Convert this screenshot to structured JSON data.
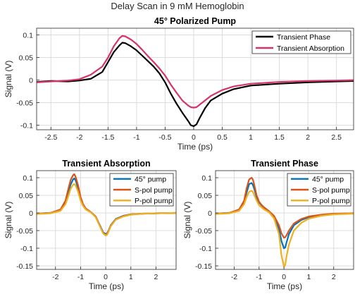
{
  "figure": {
    "suptitle": "Delay Scan in 9 mM Hemoglobin"
  },
  "chart_data": [
    {
      "type": "line",
      "title": "45° Polarized Pump",
      "xlabel": "Time (ps)",
      "ylabel": "Signal (V)",
      "xlim": [
        -2.75,
        2.8
      ],
      "ylim": [
        -0.11,
        0.115
      ],
      "xticks": [
        -2.5,
        -2,
        -1.5,
        -1,
        -0.5,
        0,
        0.5,
        1,
        1.5,
        2,
        2.5
      ],
      "xtick_labels": [
        "-2.5",
        "-2",
        "-1.5",
        "-1",
        "-0.5",
        "0",
        "0.5",
        "1",
        "1.5",
        "2",
        "2.5"
      ],
      "yticks": [
        -0.1,
        -0.05,
        0,
        0.05,
        0.1
      ],
      "ytick_labels": [
        "-0.1",
        "-0.05",
        "0",
        "0.05",
        "0.1"
      ],
      "grid": true,
      "legend_position": "top-right",
      "series": [
        {
          "name": "Transient Phase",
          "color": "#000000",
          "x": [
            -2.75,
            -2.5,
            -2.2,
            -2.0,
            -1.8,
            -1.6,
            -1.5,
            -1.4,
            -1.3,
            -1.25,
            -1.2,
            -1.1,
            -1.0,
            -0.9,
            -0.8,
            -0.7,
            -0.6,
            -0.5,
            -0.4,
            -0.3,
            -0.2,
            -0.1,
            -0.05,
            0.0,
            0.05,
            0.1,
            0.2,
            0.3,
            0.5,
            0.7,
            1.0,
            1.5,
            2.0,
            2.5,
            2.8
          ],
          "y": [
            -0.004,
            -0.002,
            -0.003,
            -0.001,
            0.003,
            0.018,
            0.04,
            0.062,
            0.077,
            0.083,
            0.082,
            0.075,
            0.066,
            0.054,
            0.042,
            0.03,
            0.015,
            -0.005,
            -0.03,
            -0.052,
            -0.072,
            -0.09,
            -0.1,
            -0.102,
            -0.098,
            -0.085,
            -0.062,
            -0.045,
            -0.03,
            -0.02,
            -0.012,
            -0.008,
            -0.005,
            -0.003,
            -0.002
          ]
        },
        {
          "name": "Transient Absorption",
          "color": "#d6336c",
          "x": [
            -2.75,
            -2.5,
            -2.2,
            -2.0,
            -1.8,
            -1.6,
            -1.5,
            -1.4,
            -1.3,
            -1.25,
            -1.2,
            -1.1,
            -1.0,
            -0.9,
            -0.8,
            -0.7,
            -0.6,
            -0.5,
            -0.4,
            -0.3,
            -0.2,
            -0.1,
            -0.05,
            0.0,
            0.05,
            0.1,
            0.2,
            0.3,
            0.5,
            0.7,
            1.0,
            1.5,
            2.0,
            2.5,
            2.8
          ],
          "y": [
            -0.005,
            -0.003,
            -0.001,
            0.002,
            0.012,
            0.03,
            0.05,
            0.075,
            0.093,
            0.098,
            0.097,
            0.09,
            0.08,
            0.067,
            0.053,
            0.04,
            0.026,
            0.01,
            -0.01,
            -0.028,
            -0.045,
            -0.056,
            -0.06,
            -0.061,
            -0.06,
            -0.055,
            -0.045,
            -0.035,
            -0.022,
            -0.014,
            -0.008,
            -0.004,
            -0.002,
            -0.001,
            0.0
          ]
        }
      ]
    },
    {
      "type": "line",
      "title": "Transient Absorption",
      "xlabel": "Time (ps)",
      "ylabel": "Signal (V)",
      "xlim": [
        -2.75,
        2.8
      ],
      "ylim": [
        -0.16,
        0.12
      ],
      "xticks": [
        -2,
        -1,
        0,
        1,
        2
      ],
      "xtick_labels": [
        "-2",
        "-1",
        "0",
        "1",
        "2"
      ],
      "yticks": [
        -0.15,
        -0.1,
        -0.05,
        0,
        0.05,
        0.1
      ],
      "ytick_labels": [
        "-0.15",
        "-0.1",
        "-0.05",
        "0",
        "0.05",
        "0.1"
      ],
      "grid": true,
      "legend_position": "top-right",
      "series": [
        {
          "name": "45° pump",
          "color": "#0072bd",
          "x": [
            -2.75,
            -2.2,
            -1.8,
            -1.6,
            -1.5,
            -1.4,
            -1.3,
            -1.25,
            -1.2,
            -1.1,
            -1.0,
            -0.9,
            -0.8,
            -0.6,
            -0.4,
            -0.2,
            -0.1,
            0.0,
            0.05,
            0.1,
            0.2,
            0.4,
            0.7,
            1.0,
            1.5,
            2.0,
            2.8
          ],
          "y": [
            -0.002,
            0.0,
            0.008,
            0.03,
            0.055,
            0.08,
            0.095,
            0.098,
            0.093,
            0.07,
            0.04,
            0.022,
            0.012,
            0.003,
            -0.01,
            -0.04,
            -0.055,
            -0.06,
            -0.058,
            -0.052,
            -0.035,
            -0.017,
            -0.008,
            -0.004,
            -0.002,
            -0.001,
            0.0
          ]
        },
        {
          "name": "S-pol pump",
          "color": "#d95319",
          "x": [
            -2.75,
            -2.2,
            -1.8,
            -1.6,
            -1.5,
            -1.4,
            -1.3,
            -1.25,
            -1.2,
            -1.1,
            -1.0,
            -0.9,
            -0.8,
            -0.6,
            -0.4,
            -0.2,
            -0.1,
            0.0,
            0.05,
            0.1,
            0.2,
            0.4,
            0.7,
            1.0,
            1.5,
            2.0,
            2.8
          ],
          "y": [
            -0.002,
            0.0,
            0.01,
            0.035,
            0.065,
            0.093,
            0.107,
            0.11,
            0.103,
            0.078,
            0.045,
            0.025,
            0.013,
            0.003,
            -0.01,
            -0.042,
            -0.057,
            -0.062,
            -0.06,
            -0.053,
            -0.036,
            -0.018,
            -0.009,
            -0.004,
            -0.002,
            -0.001,
            0.0
          ]
        },
        {
          "name": "P-pol pump",
          "color": "#edb120",
          "x": [
            -2.75,
            -2.2,
            -1.8,
            -1.6,
            -1.5,
            -1.4,
            -1.3,
            -1.25,
            -1.2,
            -1.1,
            -1.0,
            -0.9,
            -0.8,
            -0.6,
            -0.4,
            -0.2,
            -0.1,
            0.0,
            0.05,
            0.1,
            0.2,
            0.4,
            0.7,
            1.0,
            1.5,
            2.0,
            2.8
          ],
          "y": [
            -0.003,
            -0.001,
            0.006,
            0.025,
            0.045,
            0.068,
            0.08,
            0.082,
            0.078,
            0.06,
            0.035,
            0.02,
            0.01,
            0.002,
            -0.012,
            -0.043,
            -0.058,
            -0.064,
            -0.062,
            -0.055,
            -0.038,
            -0.019,
            -0.01,
            -0.005,
            -0.002,
            -0.001,
            0.0
          ]
        }
      ]
    },
    {
      "type": "line",
      "title": "Transient Phase",
      "xlabel": "Time (ps)",
      "ylabel": "Signal (V)",
      "xlim": [
        -2.75,
        2.8
      ],
      "ylim": [
        -0.16,
        0.12
      ],
      "xticks": [
        -2,
        -1,
        0,
        1,
        2
      ],
      "xtick_labels": [
        "-2",
        "-1",
        "0",
        "1",
        "2"
      ],
      "yticks": [
        -0.15,
        -0.1,
        -0.05,
        0,
        0.05,
        0.1
      ],
      "ytick_labels": [
        "-0.15",
        "-0.1",
        "-0.05",
        "0",
        "0.05",
        "0.1"
      ],
      "grid": true,
      "legend_position": "top-right",
      "series": [
        {
          "name": "45° pump",
          "color": "#0072bd",
          "x": [
            -2.75,
            -2.2,
            -1.8,
            -1.6,
            -1.5,
            -1.4,
            -1.3,
            -1.25,
            -1.2,
            -1.1,
            -1.0,
            -0.9,
            -0.8,
            -0.6,
            -0.4,
            -0.2,
            -0.1,
            0.0,
            0.05,
            0.1,
            0.2,
            0.4,
            0.7,
            1.0,
            1.5,
            2.0,
            2.8
          ],
          "y": [
            -0.002,
            0.0,
            0.008,
            0.03,
            0.058,
            0.082,
            0.085,
            0.08,
            0.07,
            0.045,
            0.03,
            0.022,
            0.015,
            0.005,
            -0.01,
            -0.045,
            -0.08,
            -0.1,
            -0.098,
            -0.085,
            -0.06,
            -0.035,
            -0.02,
            -0.012,
            -0.006,
            -0.003,
            -0.001
          ]
        },
        {
          "name": "S-pol pump",
          "color": "#d95319",
          "x": [
            -2.75,
            -2.2,
            -1.8,
            -1.6,
            -1.5,
            -1.4,
            -1.3,
            -1.25,
            -1.2,
            -1.1,
            -1.0,
            -0.9,
            -0.8,
            -0.6,
            -0.4,
            -0.2,
            -0.1,
            0.0,
            0.05,
            0.1,
            0.2,
            0.4,
            0.7,
            1.0,
            1.5,
            2.0,
            2.8
          ],
          "y": [
            -0.002,
            0.0,
            0.01,
            0.035,
            0.07,
            0.095,
            0.1,
            0.095,
            0.082,
            0.05,
            0.032,
            0.023,
            0.016,
            0.005,
            -0.008,
            -0.035,
            -0.058,
            -0.07,
            -0.069,
            -0.064,
            -0.05,
            -0.03,
            -0.017,
            -0.01,
            -0.005,
            -0.002,
            -0.001
          ]
        },
        {
          "name": "P-pol pump",
          "color": "#edb120",
          "x": [
            -2.75,
            -2.2,
            -1.8,
            -1.6,
            -1.5,
            -1.4,
            -1.3,
            -1.25,
            -1.2,
            -1.1,
            -1.0,
            -0.9,
            -0.8,
            -0.6,
            -0.4,
            -0.2,
            -0.1,
            0.0,
            0.05,
            0.1,
            0.2,
            0.4,
            0.7,
            1.0,
            1.5,
            2.0,
            2.8
          ],
          "y": [
            -0.003,
            -0.001,
            0.006,
            0.025,
            0.045,
            0.06,
            0.063,
            0.06,
            0.052,
            0.035,
            0.022,
            0.016,
            0.01,
            0.002,
            -0.015,
            -0.06,
            -0.12,
            -0.152,
            -0.148,
            -0.125,
            -0.09,
            -0.05,
            -0.028,
            -0.016,
            -0.008,
            -0.004,
            -0.002
          ]
        }
      ]
    }
  ]
}
